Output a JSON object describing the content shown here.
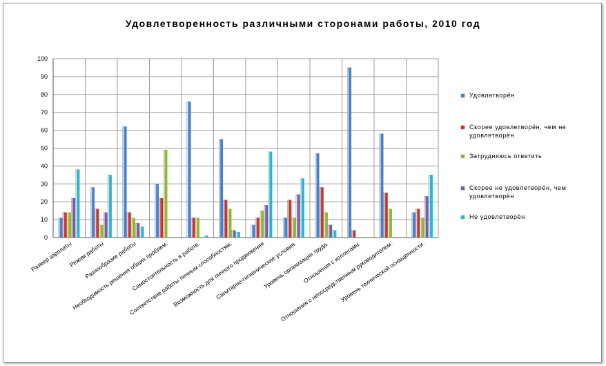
{
  "chart_data": {
    "type": "bar",
    "title": "Удовлетворенность различными сторонами работы, 2010 год",
    "xlabel": "",
    "ylabel": "",
    "ylim": [
      0,
      100
    ],
    "yticks": [
      0,
      10,
      20,
      30,
      40,
      50,
      60,
      70,
      80,
      90,
      100
    ],
    "grid": true,
    "legend_position": "right",
    "categories": [
      "Размер зарплаты",
      "Режим работы",
      "Разнообразие работы",
      "Необходимость решения общих проблем.",
      "Самостоятельность в работе.",
      "Соответствие работы личным способностям.",
      "Возможность для личного продвижения",
      "Санитарно-гигиенические условия.",
      "Уровень организации труда.",
      "Отношения с коллегами.",
      "Отношения с непосредственным руководителем.",
      "Уровень технической оснащенности."
    ],
    "series": [
      {
        "name": "Удовлетворён",
        "color": "#4a7ec8",
        "values": [
          11,
          28,
          62,
          30,
          76,
          55,
          7,
          11,
          47,
          95,
          58,
          14
        ]
      },
      {
        "name": "Скорее удовлетворён, чем не удовлетворён",
        "color": "#c0392b",
        "values": [
          14,
          16,
          14,
          22,
          11,
          21,
          11,
          21,
          28,
          4,
          25,
          16
        ]
      },
      {
        "name": "Затрудняюсь ответить",
        "color": "#8db63c",
        "values": [
          14,
          7,
          11,
          49,
          11,
          16,
          15,
          11,
          14,
          0,
          16,
          11
        ]
      },
      {
        "name": "Скорее не удовлетворён, чем удовлетворён",
        "color": "#7b5aa6",
        "values": [
          22,
          14,
          8,
          0,
          0,
          4,
          18,
          24,
          7,
          0,
          0,
          23
        ]
      },
      {
        "name": "Не удовлетворён",
        "color": "#2fb3cc",
        "values": [
          38,
          35,
          6,
          0,
          1,
          3,
          48,
          33,
          4,
          0,
          0,
          35
        ]
      }
    ]
  }
}
